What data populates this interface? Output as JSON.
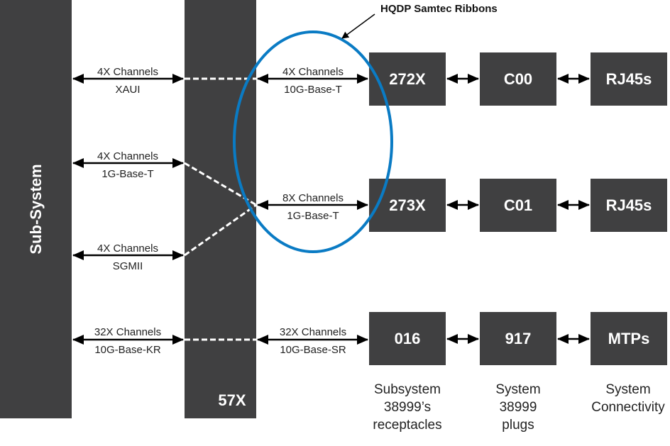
{
  "subsystem_label": "Sub-System",
  "chip_label": "57X",
  "callout": "HQDP Samtec Ribbons",
  "left_links": [
    {
      "top": "4X Channels",
      "bottom": "XAUI"
    },
    {
      "top": "4X Channels",
      "bottom": "1G-Base-T"
    },
    {
      "top": "4X Channels",
      "bottom": "SGMII"
    },
    {
      "top": "32X Channels",
      "bottom": "10G-Base-KR"
    }
  ],
  "right_links": [
    {
      "top": "4X Channels",
      "bottom": "10G-Base-T"
    },
    {
      "top": "8X Channels",
      "bottom": "1G-Base-T"
    },
    {
      "top": "32X Channels",
      "bottom": "10G-Base-SR"
    }
  ],
  "rows": [
    [
      "272X",
      "C00",
      "RJ45s"
    ],
    [
      "273X",
      "C01",
      "RJ45s"
    ],
    [
      "016",
      "917",
      "MTPs"
    ]
  ],
  "captions": [
    [
      "Subsystem",
      "38999’s",
      "receptacles"
    ],
    [
      "System",
      "38999",
      "plugs"
    ],
    [
      "System",
      "Connectivity"
    ]
  ],
  "colors": {
    "block": "#404041",
    "ellipse": "#0a7bc4"
  }
}
